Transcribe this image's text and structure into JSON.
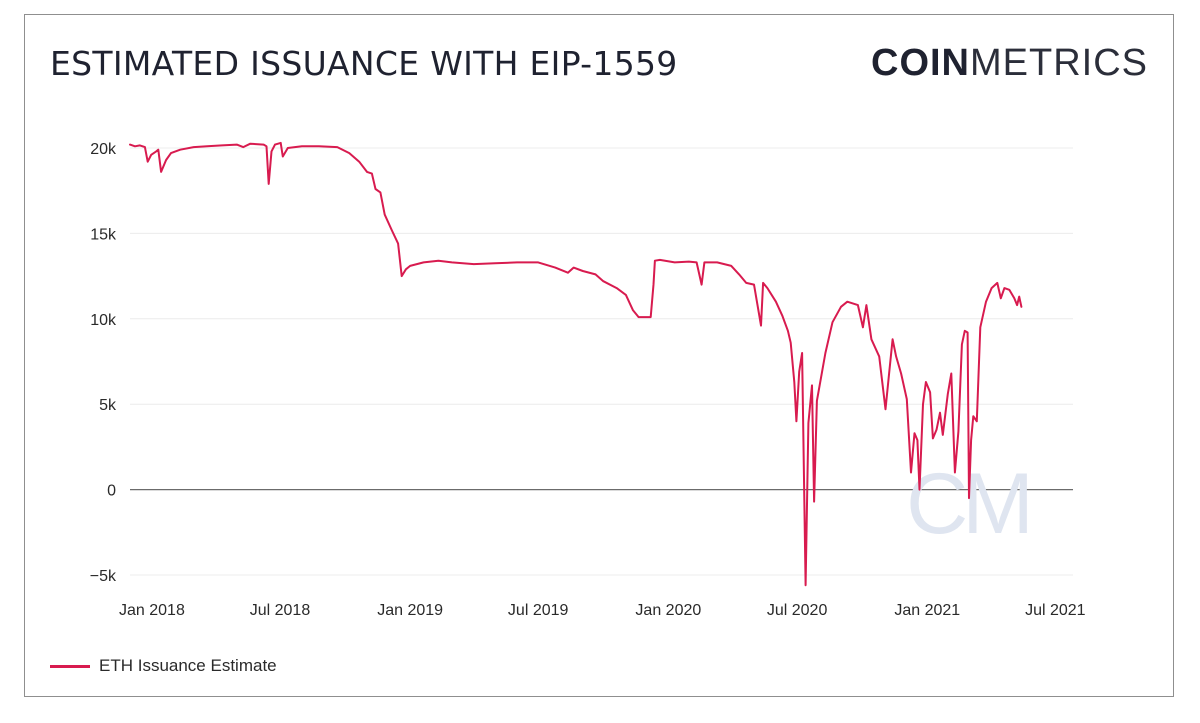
{
  "header": {
    "title": "ESTIMATED ISSUANCE WITH EIP-1559",
    "brand_bold": "COIN",
    "brand_light": "METRICS",
    "watermark": "CM"
  },
  "colors": {
    "series": "#d81b4f",
    "grid": "#ececec",
    "zero_line": "#6b6b6b",
    "axis_text": "#2a2a2a"
  },
  "chart_data": {
    "type": "line",
    "title": "ESTIMATED ISSUANCE WITH EIP-1559",
    "xlabel": "",
    "ylabel": "",
    "grid": "horizontal",
    "legend_position": "bottom-left",
    "x_range": [
      "2017-12-01",
      "2021-07-26"
    ],
    "ylim": [
      -5000,
      20000
    ],
    "y_ticks": [
      {
        "value": 20000,
        "label": "20k"
      },
      {
        "value": 15000,
        "label": "15k"
      },
      {
        "value": 10000,
        "label": "10k"
      },
      {
        "value": 5000,
        "label": "5k"
      },
      {
        "value": 0,
        "label": "0"
      },
      {
        "value": -5000,
        "label": "−5k"
      }
    ],
    "x_ticks": [
      {
        "date": "2018-01-01",
        "label": "Jan 2018"
      },
      {
        "date": "2018-07-01",
        "label": "Jul 2018"
      },
      {
        "date": "2019-01-01",
        "label": "Jan 2019"
      },
      {
        "date": "2019-07-01",
        "label": "Jul 2019"
      },
      {
        "date": "2020-01-01",
        "label": "Jan 2020"
      },
      {
        "date": "2020-07-01",
        "label": "Jul 2020"
      },
      {
        "date": "2021-01-01",
        "label": "Jan 2021"
      },
      {
        "date": "2021-07-01",
        "label": "Jul 2021"
      }
    ],
    "series": [
      {
        "name": "ETH Issuance Estimate",
        "points": [
          [
            "2017-12-01",
            20200
          ],
          [
            "2017-12-08",
            20100
          ],
          [
            "2017-12-15",
            20150
          ],
          [
            "2017-12-22",
            20050
          ],
          [
            "2017-12-26",
            19200
          ],
          [
            "2017-12-31",
            19600
          ],
          [
            "2018-01-07",
            19800
          ],
          [
            "2018-01-10",
            19900
          ],
          [
            "2018-01-14",
            18600
          ],
          [
            "2018-01-21",
            19300
          ],
          [
            "2018-01-28",
            19700
          ],
          [
            "2018-02-10",
            19900
          ],
          [
            "2018-03-01",
            20050
          ],
          [
            "2018-03-20",
            20100
          ],
          [
            "2018-04-10",
            20150
          ],
          [
            "2018-05-01",
            20200
          ],
          [
            "2018-05-10",
            20050
          ],
          [
            "2018-05-20",
            20250
          ],
          [
            "2018-06-08",
            20200
          ],
          [
            "2018-06-12",
            20100
          ],
          [
            "2018-06-15",
            17900
          ],
          [
            "2018-06-19",
            19800
          ],
          [
            "2018-06-24",
            20200
          ],
          [
            "2018-07-02",
            20300
          ],
          [
            "2018-07-05",
            19500
          ],
          [
            "2018-07-12",
            20000
          ],
          [
            "2018-08-01",
            20100
          ],
          [
            "2018-08-25",
            20100
          ],
          [
            "2018-09-20",
            20050
          ],
          [
            "2018-10-07",
            19700
          ],
          [
            "2018-10-21",
            19200
          ],
          [
            "2018-11-01",
            18600
          ],
          [
            "2018-11-08",
            18500
          ],
          [
            "2018-11-13",
            17600
          ],
          [
            "2018-11-20",
            17400
          ],
          [
            "2018-11-26",
            16100
          ],
          [
            "2018-12-06",
            15200
          ],
          [
            "2018-12-15",
            14400
          ],
          [
            "2018-12-20",
            12500
          ],
          [
            "2018-12-26",
            12900
          ],
          [
            "2019-01-01",
            13100
          ],
          [
            "2019-01-20",
            13300
          ],
          [
            "2019-02-10",
            13400
          ],
          [
            "2019-03-01",
            13300
          ],
          [
            "2019-04-01",
            13200
          ],
          [
            "2019-05-01",
            13250
          ],
          [
            "2019-06-01",
            13300
          ],
          [
            "2019-07-01",
            13300
          ],
          [
            "2019-07-25",
            13000
          ],
          [
            "2019-08-12",
            12700
          ],
          [
            "2019-08-20",
            13000
          ],
          [
            "2019-09-02",
            12800
          ],
          [
            "2019-09-20",
            12600
          ],
          [
            "2019-10-01",
            12200
          ],
          [
            "2019-10-20",
            11800
          ],
          [
            "2019-11-02",
            11400
          ],
          [
            "2019-11-12",
            10500
          ],
          [
            "2019-11-20",
            10100
          ],
          [
            "2019-12-07",
            10100
          ],
          [
            "2019-12-11",
            12000
          ],
          [
            "2019-12-13",
            13400
          ],
          [
            "2019-12-20",
            13450
          ],
          [
            "2020-01-10",
            13300
          ],
          [
            "2020-01-30",
            13350
          ],
          [
            "2020-02-10",
            13300
          ],
          [
            "2020-02-17",
            12000
          ],
          [
            "2020-02-21",
            13300
          ],
          [
            "2020-03-10",
            13300
          ],
          [
            "2020-03-30",
            13100
          ],
          [
            "2020-04-10",
            12600
          ],
          [
            "2020-04-20",
            12100
          ],
          [
            "2020-05-01",
            12000
          ],
          [
            "2020-05-11",
            9600
          ],
          [
            "2020-05-14",
            12100
          ],
          [
            "2020-05-20",
            11800
          ],
          [
            "2020-06-01",
            11000
          ],
          [
            "2020-06-10",
            10200
          ],
          [
            "2020-06-18",
            9300
          ],
          [
            "2020-06-22",
            8600
          ],
          [
            "2020-06-27",
            6300
          ],
          [
            "2020-06-30",
            4000
          ],
          [
            "2020-07-04",
            6900
          ],
          [
            "2020-07-08",
            8000
          ],
          [
            "2020-07-13",
            -5600
          ],
          [
            "2020-07-17",
            3900
          ],
          [
            "2020-07-22",
            6100
          ],
          [
            "2020-07-25",
            -700
          ],
          [
            "2020-07-29",
            5200
          ],
          [
            "2020-08-10",
            8000
          ],
          [
            "2020-08-20",
            9800
          ],
          [
            "2020-09-01",
            10700
          ],
          [
            "2020-09-10",
            11000
          ],
          [
            "2020-09-25",
            10800
          ],
          [
            "2020-10-02",
            9500
          ],
          [
            "2020-10-07",
            10800
          ],
          [
            "2020-10-14",
            8800
          ],
          [
            "2020-10-25",
            7800
          ],
          [
            "2020-11-03",
            4700
          ],
          [
            "2020-11-08",
            6800
          ],
          [
            "2020-11-13",
            8800
          ],
          [
            "2020-11-18",
            7800
          ],
          [
            "2020-11-25",
            6800
          ],
          [
            "2020-12-03",
            5300
          ],
          [
            "2020-12-09",
            1000
          ],
          [
            "2020-12-14",
            3300
          ],
          [
            "2020-12-18",
            2900
          ],
          [
            "2020-12-21",
            0
          ],
          [
            "2020-12-26",
            5000
          ],
          [
            "2020-12-30",
            6300
          ],
          [
            "2021-01-05",
            5700
          ],
          [
            "2021-01-09",
            3000
          ],
          [
            "2021-01-14",
            3500
          ],
          [
            "2021-01-19",
            4500
          ],
          [
            "2021-01-23",
            3200
          ],
          [
            "2021-01-30",
            5600
          ],
          [
            "2021-02-04",
            6800
          ],
          [
            "2021-02-09",
            1000
          ],
          [
            "2021-02-14",
            3400
          ],
          [
            "2021-02-19",
            8500
          ],
          [
            "2021-02-23",
            9300
          ],
          [
            "2021-02-27",
            9200
          ],
          [
            "2021-03-01",
            -500
          ],
          [
            "2021-03-04",
            2900
          ],
          [
            "2021-03-07",
            4300
          ],
          [
            "2021-03-12",
            4000
          ],
          [
            "2021-03-17",
            9500
          ],
          [
            "2021-03-25",
            11000
          ],
          [
            "2021-04-02",
            11800
          ],
          [
            "2021-04-10",
            12100
          ],
          [
            "2021-04-15",
            11200
          ],
          [
            "2021-04-20",
            11800
          ],
          [
            "2021-04-27",
            11700
          ],
          [
            "2021-05-04",
            11200
          ],
          [
            "2021-05-08",
            10800
          ],
          [
            "2021-05-11",
            11300
          ],
          [
            "2021-05-14",
            10700
          ]
        ]
      }
    ]
  },
  "legend": {
    "label": "ETH Issuance Estimate"
  }
}
